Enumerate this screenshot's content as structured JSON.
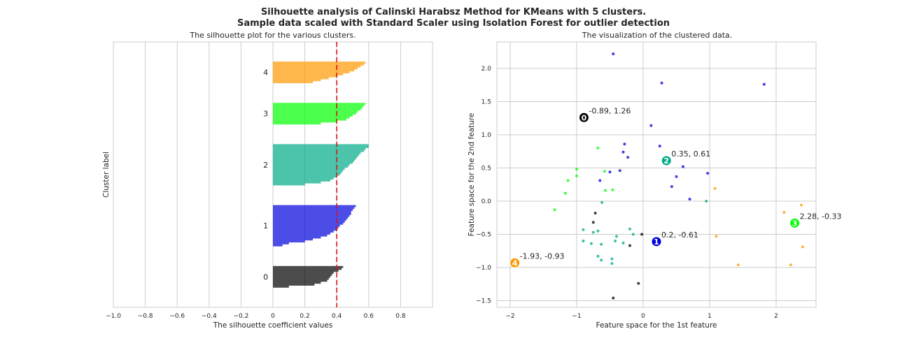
{
  "figure": {
    "title_line1": "Silhouette analysis of Calinski Harabsz Method for KMeans with 5 clusters.",
    "title_line2": "Sample data scaled with Standard Scaler using Isolation Forest for outlier detection"
  },
  "chart_data": [
    {
      "type": "area",
      "title": "The silhouette plot for the various clusters.",
      "xlabel": "The silhouette coefficient values",
      "ylabel": "Cluster label",
      "xlim": [
        -1.0,
        1.0
      ],
      "xticks": [
        "−1.0",
        "−0.8",
        "−0.6",
        "−0.4",
        "−0.2",
        "0",
        "0.2",
        "0.4",
        "0.6",
        "0.8"
      ],
      "grid": "vertical",
      "average_line": {
        "value": 0.4,
        "color": "#e01010",
        "style": "dashed"
      },
      "clusters": [
        {
          "label": "0",
          "color": "#000000",
          "values": [
            0.44,
            0.43,
            0.41,
            0.38,
            0.37,
            0.36,
            0.35,
            0.34,
            0.3,
            0.26,
            0.1
          ]
        },
        {
          "label": "1",
          "color": "#0000dd",
          "values": [
            0.52,
            0.51,
            0.5,
            0.49,
            0.49,
            0.48,
            0.47,
            0.46,
            0.45,
            0.44,
            0.42,
            0.41,
            0.4,
            0.38,
            0.36,
            0.34,
            0.3,
            0.25,
            0.2,
            0.1,
            0.06
          ]
        },
        {
          "label": "2",
          "color": "#00aa88",
          "values": [
            0.6,
            0.6,
            0.58,
            0.57,
            0.55,
            0.54,
            0.53,
            0.52,
            0.51,
            0.5,
            0.48,
            0.47,
            0.45,
            0.44,
            0.43,
            0.42,
            0.4,
            0.38,
            0.36,
            0.3,
            0.2
          ]
        },
        {
          "label": "3",
          "color": "#00ff00",
          "values": [
            0.58,
            0.57,
            0.56,
            0.55,
            0.53,
            0.52,
            0.5,
            0.48,
            0.46,
            0.4,
            0.3
          ]
        },
        {
          "label": "4",
          "color": "#ff9900",
          "values": [
            0.58,
            0.57,
            0.55,
            0.53,
            0.51,
            0.48,
            0.44,
            0.4,
            0.35,
            0.3,
            0.25
          ]
        }
      ]
    },
    {
      "type": "scatter",
      "title": "The visualization of the clustered data.",
      "xlabel": "Feature space for the 1st feature",
      "ylabel": "Feature space for the 2nd feature",
      "xlim": [
        -2.2,
        2.6
      ],
      "ylim": [
        -1.6,
        2.4
      ],
      "xticks": [
        -2,
        -1,
        0,
        1,
        2
      ],
      "yticks": [
        "−1.5",
        "−1.0",
        "−0.5",
        "0.0",
        "0.5",
        "1.0",
        "1.5",
        "2.0"
      ],
      "yticks_values": [
        -1.5,
        -1.0,
        -0.5,
        0.0,
        0.5,
        1.0,
        1.5,
        2.0
      ],
      "xticks_labels": [
        "−2",
        "−1",
        "0",
        "1",
        "2"
      ],
      "grid": true,
      "series": [
        {
          "cluster": "0",
          "color": "#000000",
          "points": [
            [
              -0.72,
              -0.18
            ],
            [
              -0.75,
              -0.32
            ],
            [
              -0.02,
              -0.5
            ],
            [
              -0.2,
              -0.67
            ],
            [
              -0.07,
              -1.24
            ],
            [
              -0.45,
              -1.46
            ]
          ]
        },
        {
          "cluster": "1",
          "color": "#0000dd",
          "points": [
            [
              -0.45,
              2.22
            ],
            [
              0.28,
              1.78
            ],
            [
              1.82,
              1.76
            ],
            [
              0.12,
              1.14
            ],
            [
              -0.28,
              0.86
            ],
            [
              0.25,
              0.83
            ],
            [
              -0.3,
              0.74
            ],
            [
              -0.23,
              0.66
            ],
            [
              0.6,
              0.52
            ],
            [
              -0.35,
              0.46
            ],
            [
              -0.5,
              0.44
            ],
            [
              0.97,
              0.42
            ],
            [
              0.5,
              0.37
            ],
            [
              -0.65,
              0.31
            ],
            [
              0.43,
              0.22
            ],
            [
              0.7,
              0.03
            ]
          ]
        },
        {
          "cluster": "2",
          "color": "#00aa88",
          "points": [
            [
              -0.62,
              -0.02
            ],
            [
              -0.9,
              -0.43
            ],
            [
              -0.75,
              -0.47
            ],
            [
              -0.68,
              -0.45
            ],
            [
              -0.2,
              -0.42
            ],
            [
              -0.15,
              -0.5
            ],
            [
              -0.4,
              -0.53
            ],
            [
              -0.42,
              -0.6
            ],
            [
              -0.9,
              -0.6
            ],
            [
              -0.78,
              -0.64
            ],
            [
              -0.63,
              -0.65
            ],
            [
              -0.3,
              -0.63
            ],
            [
              -0.68,
              -0.83
            ],
            [
              -0.47,
              -0.87
            ],
            [
              -0.63,
              -0.89
            ],
            [
              -0.47,
              -0.94
            ],
            [
              0.95,
              0.0
            ]
          ]
        },
        {
          "cluster": "3",
          "color": "#00ff00",
          "points": [
            [
              -0.68,
              0.8
            ],
            [
              -1.0,
              0.48
            ],
            [
              -1.0,
              0.38
            ],
            [
              -0.58,
              0.45
            ],
            [
              -1.13,
              0.31
            ],
            [
              -0.57,
              0.16
            ],
            [
              -0.46,
              0.17
            ],
            [
              -1.17,
              0.12
            ],
            [
              -1.33,
              -0.13
            ]
          ]
        },
        {
          "cluster": "4",
          "color": "#ff9900",
          "points": [
            [
              1.08,
              0.19
            ],
            [
              2.12,
              -0.17
            ],
            [
              2.38,
              -0.06
            ],
            [
              1.1,
              -0.53
            ],
            [
              2.4,
              -0.69
            ],
            [
              1.43,
              -0.96
            ],
            [
              2.22,
              -0.96
            ]
          ]
        }
      ],
      "centers": [
        {
          "label": "0",
          "x": -0.89,
          "y": 1.26,
          "color": "#000000",
          "annotation": "-0.89, 1.26"
        },
        {
          "label": "1",
          "x": 0.2,
          "y": -0.61,
          "color": "#0000dd",
          "annotation": "0.2, -0.61"
        },
        {
          "label": "2",
          "x": 0.35,
          "y": 0.61,
          "color": "#00aa88",
          "annotation": "0.35, 0.61"
        },
        {
          "label": "3",
          "x": 2.28,
          "y": -0.33,
          "color": "#00ff00",
          "annotation": "2.28, -0.33"
        },
        {
          "label": "4",
          "x": -1.93,
          "y": -0.93,
          "color": "#ff9900",
          "annotation": "-1.93, -0.93"
        }
      ]
    }
  ]
}
